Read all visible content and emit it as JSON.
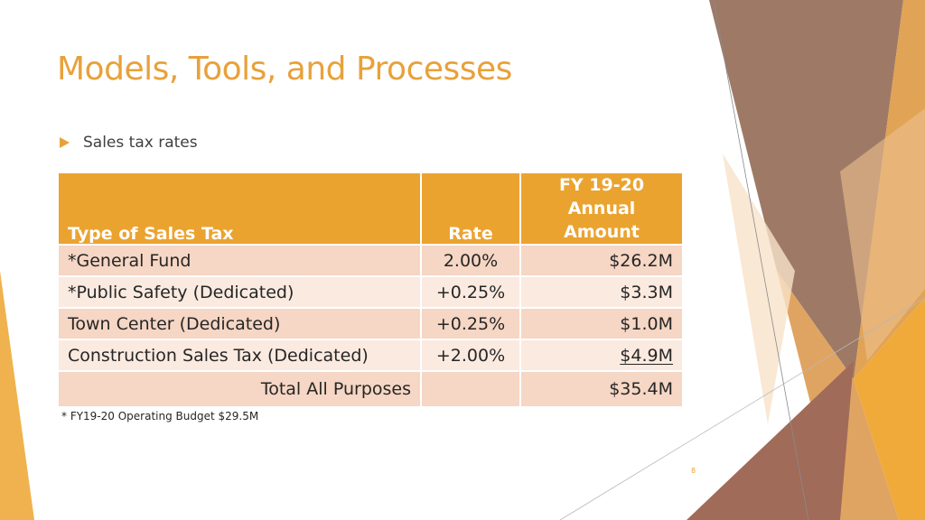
{
  "slide": {
    "title": "Models, Tools, and Processes",
    "bullet": "Sales tax rates",
    "footnote": "* FY19-20 Operating Budget $29.5M",
    "page_number": "8"
  },
  "table": {
    "headers": {
      "type": "Type of Sales Tax",
      "rate": "Rate",
      "amount_line1": "FY 19-20",
      "amount_line2": "Annual Amount"
    },
    "rows": [
      {
        "type": "*General Fund",
        "rate": "2.00%",
        "amount": "$26.2M"
      },
      {
        "type": "*Public Safety (Dedicated)",
        "rate": "+0.25%",
        "amount": "$3.3M"
      },
      {
        "type": "Town Center (Dedicated)",
        "rate": "+0.25%",
        "amount": "$1.0M"
      },
      {
        "type": "Construction Sales Tax (Dedicated)",
        "rate": "+2.00%",
        "amount": "$4.9M"
      }
    ],
    "total": {
      "label": "Total All Purposes",
      "amount": "$35.4M"
    }
  },
  "colors": {
    "accent": "#e8a13a",
    "header_fill": "#eba330",
    "row_dark": "#f6d6c4",
    "row_light": "#fbeae0"
  }
}
